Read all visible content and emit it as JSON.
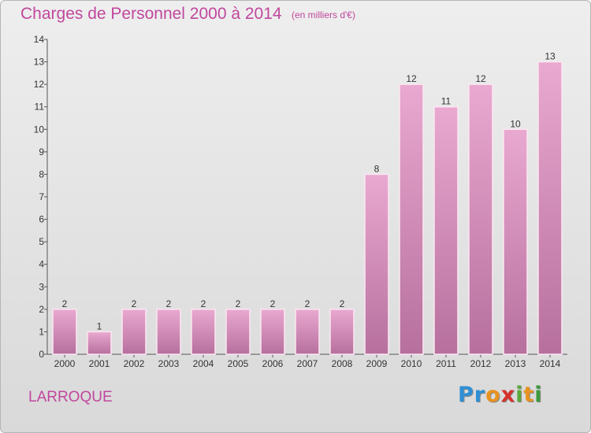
{
  "header": {
    "title": "Charges de Personnel 2000 à 2014",
    "subtitle": "(en milliers d'€)"
  },
  "footer": {
    "commune": "LARROQUE",
    "brand_letters": [
      "P",
      "r",
      "o",
      "x",
      "i",
      "t",
      "i"
    ],
    "brand_colors": [
      "#2f8fd6",
      "#2f8fd6",
      "#e89320",
      "#d6312c",
      "#5aaa3c",
      "#e89320",
      "#3b9a3b"
    ]
  },
  "chart_data": {
    "type": "bar",
    "title": "Charges de Personnel 2000 à 2014",
    "subtitle": "(en milliers d'€)",
    "categories": [
      "2000",
      "2001",
      "2002",
      "2003",
      "2004",
      "2005",
      "2006",
      "2007",
      "2008",
      "2009",
      "2010",
      "2011",
      "2012",
      "2013",
      "2014"
    ],
    "values": [
      2,
      1,
      2,
      2,
      2,
      2,
      2,
      2,
      2,
      8,
      12,
      11,
      12,
      10,
      13
    ],
    "ylim": [
      0,
      14
    ],
    "yticks": [
      0,
      1,
      2,
      3,
      4,
      5,
      6,
      7,
      8,
      9,
      10,
      11,
      12,
      13,
      14
    ],
    "grid": false,
    "bar_color_top": "#e9a9d0",
    "bar_color_bottom": "#b7709e",
    "bar_border": "#fbe7f2"
  }
}
